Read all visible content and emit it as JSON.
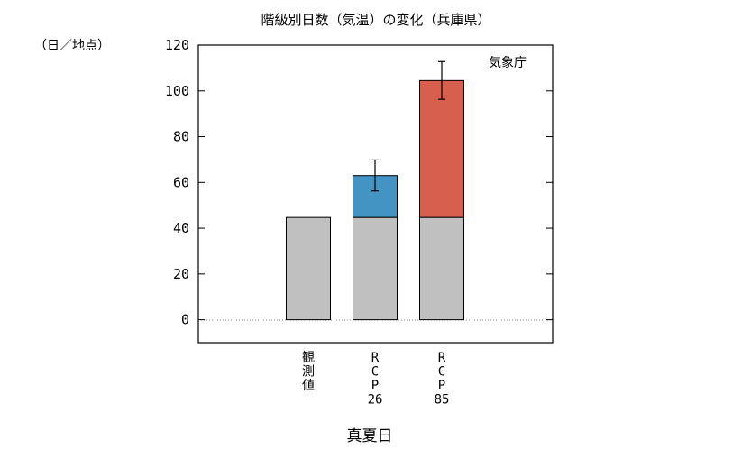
{
  "chart_data": {
    "type": "bar",
    "title": "階級別日数（気温）の変化（兵庫県）",
    "ylabel": "（日／地点）",
    "xlabel": "真夏日",
    "credit": "気象庁",
    "ylim": [
      -10,
      120
    ],
    "yticks": [
      0,
      20,
      40,
      60,
      80,
      100,
      120
    ],
    "zero_line": "dotted",
    "categories": [
      {
        "name": "観測値",
        "lines": [
          "観",
          "測",
          "値"
        ]
      },
      {
        "name": "RCP26",
        "lines": [
          "R",
          "C",
          "P",
          "26"
        ]
      },
      {
        "name": "RCP85",
        "lines": [
          "R",
          "C",
          "P",
          "85"
        ]
      }
    ],
    "series": [
      {
        "name": "",
        "values": [
          44.7,
          44.7,
          44.7
        ],
        "color": "#c0c0c0"
      },
      {
        "name": "",
        "values": [
          0,
          18.3,
          59.8
        ],
        "color": "#4393c3"
      }
    ],
    "increase_colors": [
      "#c0c0c0",
      "#4393c3",
      "#d6604d"
    ],
    "error_bars": [
      null,
      {
        "low": 56.3,
        "high": 69.8
      },
      {
        "low": 96.3,
        "high": 112.8
      }
    ]
  }
}
